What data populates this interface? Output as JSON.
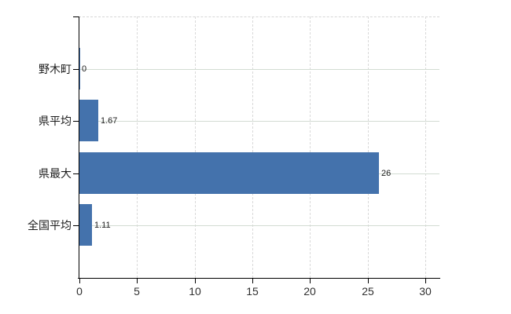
{
  "chart_data": {
    "type": "bar",
    "orientation": "horizontal",
    "title": "",
    "categories": [
      "野木町",
      "県平均",
      "県最大",
      "全国平均"
    ],
    "values": [
      0,
      1.67,
      26,
      1.11
    ],
    "value_labels": [
      "0",
      "1.67",
      "26",
      "1.11"
    ],
    "x_tick_labels": [
      "0",
      "5",
      "10",
      "15",
      "20",
      "25",
      "30"
    ],
    "x_tick_values": [
      0,
      5,
      10,
      15,
      20,
      25,
      30
    ],
    "xlim": [
      0,
      31.2
    ],
    "grid": true,
    "legend": false,
    "colors": {
      "bar": "#4472ac",
      "axis": "#000000",
      "gridline_vertical": "#d9d9d9",
      "gridline_horizontal": "#d3dcd3",
      "plot_border_dashed": "#d6d6d6",
      "text": "#1c1c1c",
      "tick_text": "#303030",
      "background": "#ffffff"
    }
  }
}
